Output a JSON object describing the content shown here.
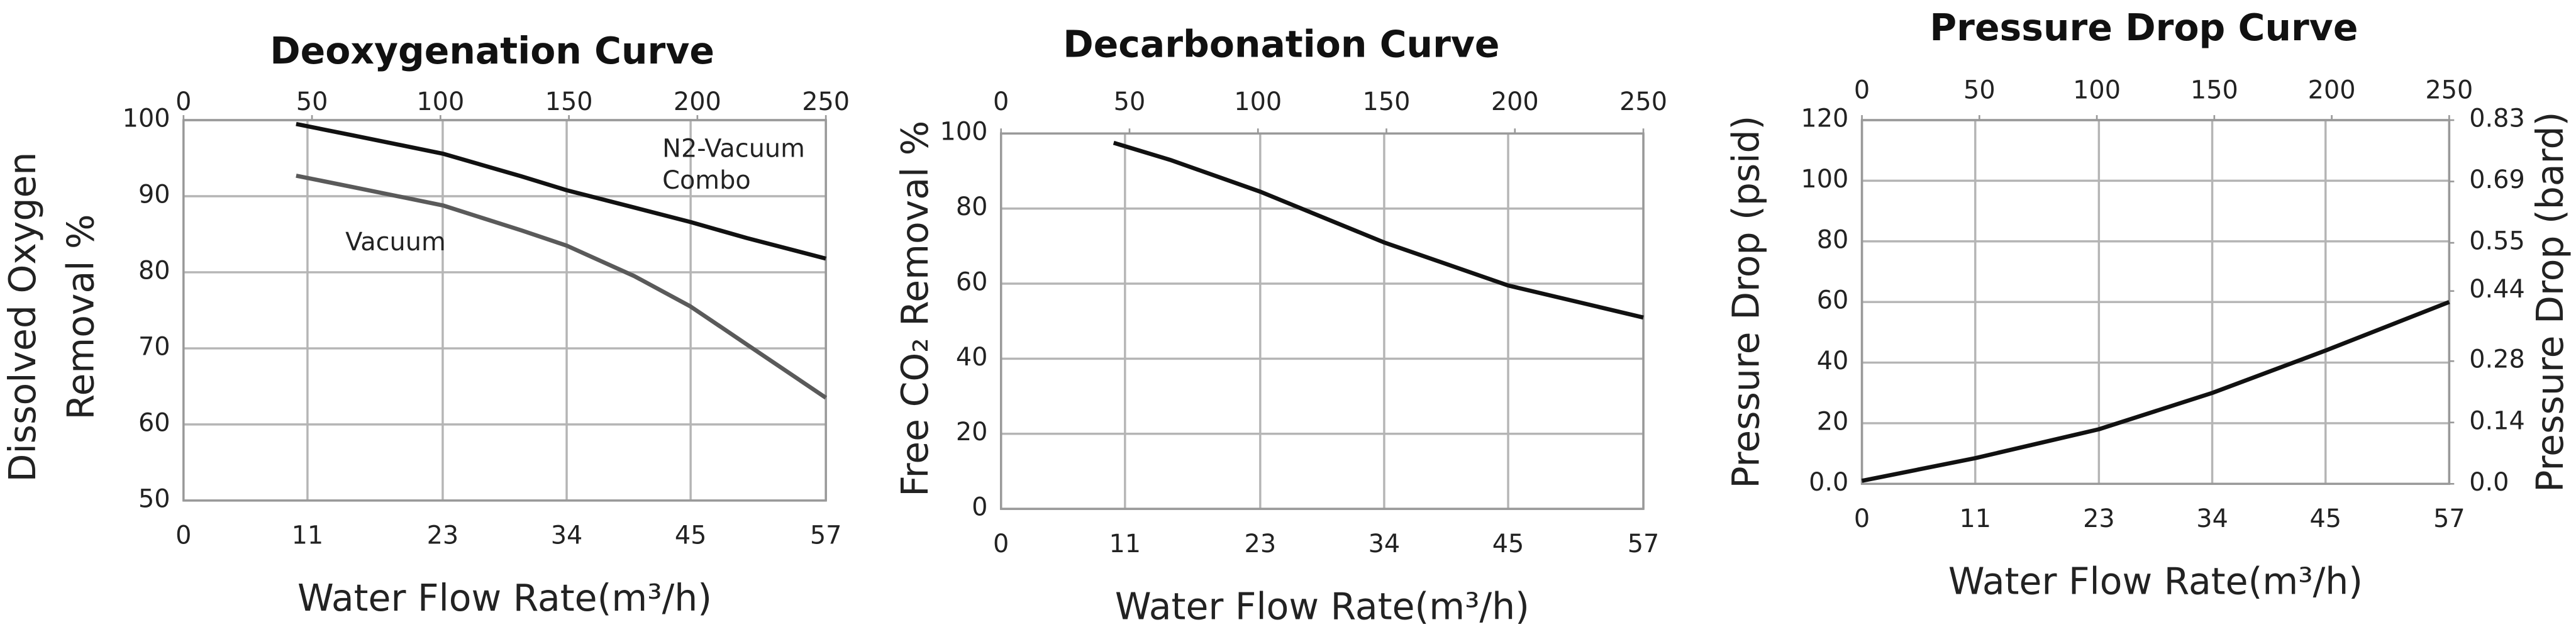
{
  "chart_data": [
    {
      "type": "line",
      "title": "Deoxygenation Curve",
      "ylabel": [
        "Dissolved Oxygen",
        "Removal %"
      ],
      "xlabel": "Water Flow Rate(m³/h)",
      "xlim": [
        0,
        57
      ],
      "xticks": [
        0,
        11,
        23,
        34,
        45,
        57
      ],
      "x2lim": [
        0,
        250
      ],
      "x2ticks": [
        0,
        50,
        100,
        150,
        200,
        250
      ],
      "ylim": [
        50,
        100
      ],
      "yticks": [
        50,
        60,
        70,
        80,
        90,
        100
      ],
      "grid": true,
      "x": [
        10,
        15,
        23,
        30,
        34,
        40,
        45,
        50,
        57
      ],
      "series": [
        {
          "name": "N2-Vacuum Combo",
          "color": "#111111",
          "values": [
            99.5,
            98,
            95.6,
            92.6,
            90.8,
            88.5,
            86.6,
            84.5,
            81.8
          ]
        },
        {
          "name": "Vacuum",
          "color": "#5a5a5a",
          "values": [
            92.7,
            91.2,
            88.8,
            85.5,
            83.5,
            79.5,
            75.5,
            70.5,
            63.5
          ]
        }
      ]
    },
    {
      "type": "line",
      "title": "Decarbonation Curve",
      "ylabel": [
        "Free CO₂ Removal %"
      ],
      "xlabel": "Water Flow Rate(m³/h)",
      "xlim": [
        0,
        57
      ],
      "xticks": [
        0,
        11,
        23,
        34,
        45,
        57
      ],
      "x2lim": [
        0,
        250
      ],
      "x2ticks": [
        0,
        50,
        100,
        150,
        200,
        250
      ],
      "ylim": [
        0,
        100
      ],
      "yticks": [
        0,
        20,
        40,
        60,
        80,
        100
      ],
      "grid": true,
      "x": [
        10,
        15,
        23,
        34,
        45,
        57
      ],
      "series": [
        {
          "color": "#111111",
          "values": [
            97.5,
            93,
            84.5,
            71,
            59.5,
            51
          ]
        }
      ]
    },
    {
      "type": "line",
      "title": "Pressure Drop Curve",
      "ylabel": [
        "Pressure Drop (psid)"
      ],
      "y2label": "Pressure Drop (bard)",
      "xlabel": "Water Flow Rate(m³/h)",
      "xlim": [
        0,
        57
      ],
      "xticks": [
        0,
        11,
        23,
        34,
        45,
        57
      ],
      "x2lim": [
        0,
        250
      ],
      "x2ticks": [
        0,
        50,
        100,
        150,
        200,
        250
      ],
      "ylim": [
        0,
        120
      ],
      "yticks": [
        {
          "value": 0,
          "label": "0.0"
        },
        20,
        40,
        60,
        80,
        100,
        120
      ],
      "y2lim": [
        0,
        0.83
      ],
      "y2ticks": [
        {
          "value": 0,
          "label": "0.0"
        },
        0.14,
        0.28,
        0.44,
        0.55,
        0.69,
        0.83
      ],
      "grid": true,
      "x": [
        0,
        11,
        23,
        34,
        45,
        57
      ],
      "series": [
        {
          "color": "#111111",
          "values": [
            1,
            8.5,
            18,
            30,
            44,
            60
          ]
        }
      ]
    }
  ]
}
